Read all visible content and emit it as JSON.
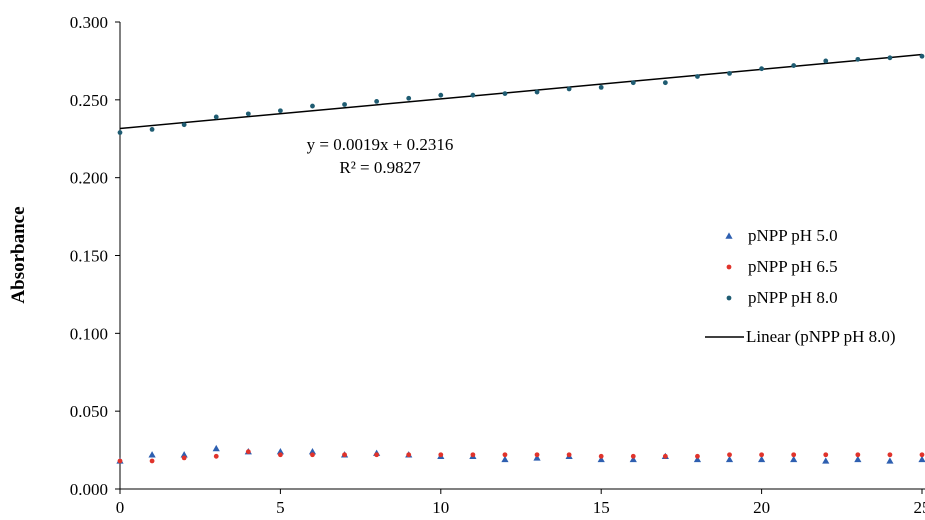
{
  "chart_data": {
    "type": "scatter",
    "title": "",
    "xlabel": "",
    "ylabel": "Absorbance",
    "xlim": [
      0,
      25
    ],
    "ylim": [
      0,
      0.3
    ],
    "x_ticks": [
      "0",
      "5",
      "10",
      "15",
      "20",
      "25"
    ],
    "y_ticks": [
      "0.000",
      "0.050",
      "0.100",
      "0.150",
      "0.200",
      "0.250",
      "0.300"
    ],
    "grid": false,
    "legend_position": "right",
    "x": [
      0,
      1,
      2,
      3,
      4,
      5,
      6,
      7,
      8,
      9,
      10,
      11,
      12,
      13,
      14,
      15,
      16,
      17,
      18,
      19,
      20,
      21,
      22,
      23,
      24,
      25
    ],
    "series": [
      {
        "name": "pNPP pH 5.0",
        "marker": "triangle",
        "color": "#2e5fb0",
        "values": [
          0.018,
          0.022,
          0.022,
          0.026,
          0.024,
          0.024,
          0.024,
          0.022,
          0.023,
          0.022,
          0.021,
          0.021,
          0.019,
          0.02,
          0.021,
          0.019,
          0.019,
          0.021,
          0.019,
          0.019,
          0.019,
          0.019,
          0.018,
          0.019,
          0.018,
          0.019
        ]
      },
      {
        "name": "pNPP pH 6.5",
        "marker": "circle",
        "color": "#e0332b",
        "values": [
          0.018,
          0.018,
          0.02,
          0.021,
          0.024,
          0.022,
          0.022,
          0.022,
          0.022,
          0.022,
          0.022,
          0.022,
          0.022,
          0.022,
          0.022,
          0.021,
          0.021,
          0.021,
          0.021,
          0.022,
          0.022,
          0.022,
          0.022,
          0.022,
          0.022,
          0.022
        ]
      },
      {
        "name": "pNPP pH 8.0",
        "marker": "circle",
        "color": "#1f5c72",
        "values": [
          0.229,
          0.231,
          0.234,
          0.239,
          0.241,
          0.243,
          0.246,
          0.247,
          0.249,
          0.251,
          0.253,
          0.253,
          0.254,
          0.255,
          0.257,
          0.258,
          0.261,
          0.261,
          0.265,
          0.267,
          0.27,
          0.272,
          0.275,
          0.276,
          0.277,
          0.278
        ]
      }
    ],
    "trendline": {
      "name": "Linear (pNPP pH 8.0)",
      "color": "#000000",
      "slope": 0.0019,
      "intercept": 0.2316,
      "equation": "y = 0.0019x + 0.2316",
      "r_squared": "R² = 0.9827"
    }
  }
}
